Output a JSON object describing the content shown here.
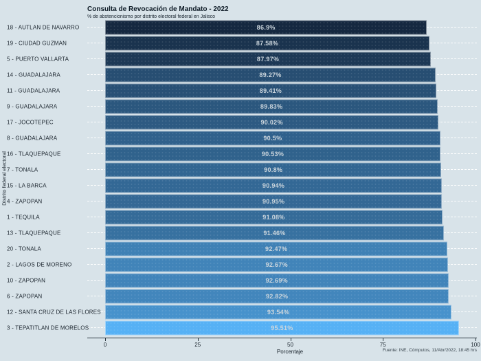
{
  "header": {
    "title": "Consulta de Revocación de Mandato - 2022",
    "subtitle": "% de abstencionismo por distrito electoral federal en Jalisco"
  },
  "caption": "Fuente: INE, Cómputos, 11/Abr/2022, 18:45 hrs",
  "colors": {
    "background": "#d8e3e9",
    "bar_scale_low": "#152840",
    "bar_scale_high": "#56b1f5",
    "bar_value_text": "#ccd6dd",
    "axis_text": "#1a242d",
    "row_line": "#ffffff"
  },
  "chart_data": {
    "type": "bar",
    "orientation": "horizontal",
    "title": "Consulta de Revocación de Mandato - 2022",
    "subtitle": "% de abstencionismo por distrito electoral federal en Jalisco",
    "xlabel": "Porcentaje",
    "ylabel": "Distrito federal electoral",
    "xlim": [
      0,
      100
    ],
    "x_ticks": [
      0,
      25,
      50,
      75,
      100
    ],
    "grid": "white dashed horizontal row lines",
    "legend": "none",
    "categories": [
      "18 - AUTLAN DE NAVARRO",
      "19 - CIUDAD GUZMAN",
      "5 - PUERTO VALLARTA",
      "14 - GUADALAJARA",
      "11 - GUADALAJARA",
      "9 - GUADALAJARA",
      "17 - JOCOTEPEC",
      "8 - GUADALAJARA",
      "16 - TLAQUEPAQUE",
      "7 - TONALA",
      "15 - LA BARCA",
      "4 - ZAPOPAN",
      "1 - TEQUILA",
      "13 - TLAQUEPAQUE",
      "20 - TONALA",
      "2 - LAGOS DE MORENO",
      "10 - ZAPOPAN",
      "6 - ZAPOPAN",
      "12 - SANTA CRUZ DE LAS FLORES",
      "3 - TEPATITLAN DE MORELOS"
    ],
    "values": [
      86.9,
      87.58,
      87.97,
      89.27,
      89.41,
      89.83,
      90.02,
      90.5,
      90.53,
      90.8,
      90.94,
      90.95,
      91.08,
      91.46,
      92.47,
      92.67,
      92.69,
      92.82,
      93.54,
      95.51
    ],
    "value_labels": [
      "86.9%",
      "87.58%",
      "87.97%",
      "89.27%",
      "89.41%",
      "89.83%",
      "90.02%",
      "90.5%",
      "90.53%",
      "90.8%",
      "90.94%",
      "90.95%",
      "91.08%",
      "91.46%",
      "92.47%",
      "92.67%",
      "92.69%",
      "92.82%",
      "93.54%",
      "95.51%"
    ]
  }
}
